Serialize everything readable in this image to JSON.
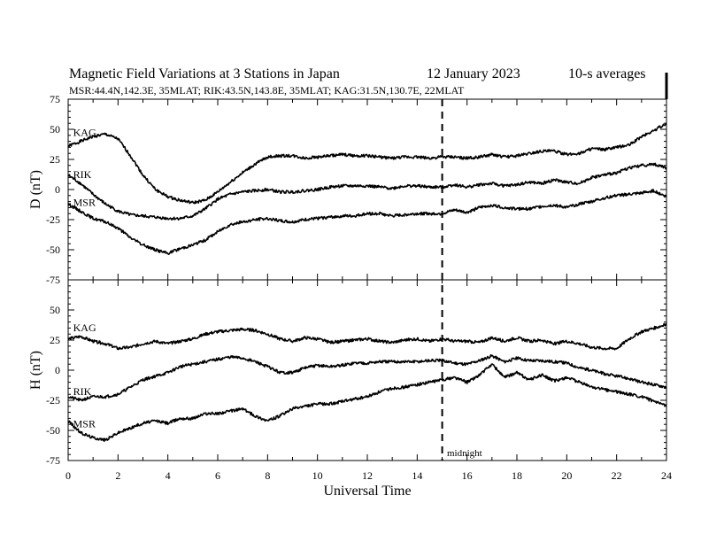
{
  "header": {
    "title": "Magnetic Field Variations at 3 Stations in Japan",
    "date": "12 January  2023",
    "averaging": "10-s averages",
    "stations_line": "MSR:44.4N,142.3E, 35MLAT;  RIK:43.5N,143.8E, 35MLAT;  KAG:31.5N,130.7E, 22MLAT"
  },
  "annotation": {
    "text": "midnight",
    "x": 15
  },
  "colors": {
    "line": "#000000",
    "axis": "#000000",
    "background": "#ffffff"
  },
  "chart_data": [
    {
      "type": "line",
      "panel": "top",
      "ylabel": "D (nT)",
      "xlabel": "",
      "xlim": [
        0,
        24
      ],
      "ylim": [
        -75,
        75
      ],
      "yticks": [
        75,
        50,
        25,
        0,
        -25,
        -50,
        -75
      ],
      "grid": false,
      "legend": "none",
      "x": [
        0,
        0.5,
        1,
        1.5,
        2,
        2.5,
        3,
        3.5,
        4,
        4.5,
        5,
        5.5,
        6,
        6.5,
        7,
        7.5,
        8,
        8.5,
        9,
        9.5,
        10,
        10.5,
        11,
        11.5,
        12,
        12.5,
        13,
        13.5,
        14,
        14.5,
        15,
        15.5,
        16,
        16.5,
        17,
        17.5,
        18,
        18.5,
        19,
        19.5,
        20,
        20.5,
        21,
        21.5,
        22,
        22.5,
        23,
        23.5,
        24
      ],
      "series": [
        {
          "name": "KAG",
          "values": [
            36,
            40,
            44,
            46,
            42,
            28,
            12,
            0,
            -6,
            -9,
            -11,
            -9,
            -2,
            6,
            14,
            21,
            27,
            28,
            28,
            26,
            27,
            28,
            29,
            28,
            28,
            27,
            26,
            27,
            27,
            26,
            27,
            27,
            26,
            27,
            29,
            27,
            28,
            30,
            32,
            32,
            29,
            30,
            34,
            33,
            35,
            37,
            44,
            49,
            55
          ]
        },
        {
          "name": "RIK",
          "values": [
            12,
            5,
            -4,
            -12,
            -18,
            -21,
            -22,
            -23,
            -24,
            -24,
            -22,
            -16,
            -8,
            -4,
            -2,
            -1,
            0,
            -2,
            -2,
            -1,
            0,
            2,
            3,
            3,
            3,
            2,
            1,
            3,
            3,
            2,
            2,
            4,
            2,
            4,
            5,
            3,
            4,
            6,
            5,
            8,
            6,
            5,
            10,
            12,
            14,
            18,
            20,
            21,
            18
          ]
        },
        {
          "name": "MSR",
          "values": [
            -12,
            -18,
            -24,
            -27,
            -32,
            -40,
            -46,
            -50,
            -53,
            -49,
            -46,
            -42,
            -35,
            -29,
            -27,
            -25,
            -24,
            -26,
            -27,
            -25,
            -24,
            -23,
            -22,
            -22,
            -20,
            -20,
            -22,
            -21,
            -20,
            -20,
            -20,
            -17,
            -19,
            -15,
            -13,
            -15,
            -16,
            -16,
            -14,
            -13,
            -15,
            -12,
            -10,
            -7,
            -5,
            -4,
            -3,
            -1,
            -6
          ]
        }
      ]
    },
    {
      "type": "line",
      "panel": "bottom",
      "ylabel": "H (nT)",
      "xlabel": "Universal Time",
      "xlim": [
        0,
        24
      ],
      "ylim": [
        -75,
        75
      ],
      "yticks": [
        50,
        25,
        0,
        -25,
        -50,
        -75
      ],
      "xticks": [
        0,
        2,
        4,
        6,
        8,
        10,
        12,
        14,
        16,
        18,
        20,
        22,
        24
      ],
      "grid": false,
      "legend": "none",
      "x": [
        0,
        0.5,
        1,
        1.5,
        2,
        2.5,
        3,
        3.5,
        4,
        4.5,
        5,
        5.5,
        6,
        6.5,
        7,
        7.5,
        8,
        8.5,
        9,
        9.5,
        10,
        10.5,
        11,
        11.5,
        12,
        12.5,
        13,
        13.5,
        14,
        14.5,
        15,
        15.5,
        16,
        16.5,
        17,
        17.5,
        18,
        18.5,
        19,
        19.5,
        20,
        20.5,
        21,
        21.5,
        22,
        22.5,
        23,
        23.5,
        24
      ],
      "series": [
        {
          "name": "KAG",
          "values": [
            26,
            28,
            24,
            22,
            18,
            19,
            22,
            24,
            22,
            24,
            26,
            30,
            32,
            33,
            34,
            33,
            30,
            26,
            24,
            27,
            26,
            23,
            24,
            25,
            26,
            24,
            23,
            25,
            26,
            24,
            26,
            24,
            24,
            23,
            27,
            24,
            27,
            24,
            25,
            22,
            24,
            22,
            19,
            18,
            18,
            26,
            32,
            35,
            38
          ]
        },
        {
          "name": "RIK",
          "values": [
            -22,
            -25,
            -22,
            -22,
            -20,
            -14,
            -8,
            -5,
            -2,
            3,
            5,
            7,
            9,
            11,
            10,
            7,
            3,
            -2,
            -2,
            2,
            4,
            3,
            4,
            6,
            6,
            7,
            7,
            7,
            7,
            8,
            8,
            6,
            5,
            8,
            12,
            7,
            10,
            8,
            8,
            7,
            6,
            2,
            0,
            -3,
            -5,
            -7,
            -10,
            -12,
            -14
          ]
        },
        {
          "name": "MSR",
          "values": [
            -42,
            -52,
            -56,
            -58,
            -52,
            -48,
            -44,
            -42,
            -44,
            -40,
            -40,
            -36,
            -36,
            -34,
            -32,
            -38,
            -42,
            -38,
            -32,
            -30,
            -28,
            -28,
            -26,
            -24,
            -22,
            -18,
            -15,
            -14,
            -12,
            -10,
            -8,
            -6,
            -10,
            -4,
            5,
            -6,
            -2,
            -8,
            -4,
            -9,
            -6,
            -10,
            -14,
            -16,
            -18,
            -20,
            -22,
            -26,
            -30
          ]
        }
      ]
    }
  ]
}
